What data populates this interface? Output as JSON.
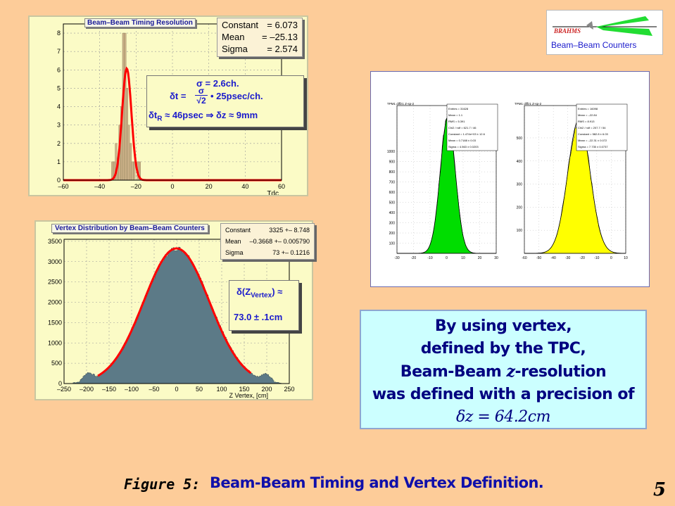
{
  "logo": {
    "brand": "BRAHMS",
    "label": "Beam–Beam Counters"
  },
  "timing_panel": {
    "title": "Beam–Beam Timing Resolution",
    "stats": [
      {
        "key": "Constant",
        "val": "= 6.073"
      },
      {
        "key": "Mean",
        "val": "= –25.13"
      },
      {
        "key": "Sigma",
        "val": "= 2.574"
      }
    ],
    "annotation": {
      "sigma_line": "σ = 2.6ch.",
      "dt_prefix": "δt =",
      "frac_num": "σ",
      "frac_den": "√2",
      "dt_suffix": "• 25psec/ch.",
      "dtr_line": "δt",
      "dtr_sub": "R",
      "dtr_rest": "≈ 46psec  ⇒ δz ≈ 9mm"
    },
    "xlabel": "Tdc",
    "xticks": [
      "–60",
      "–40",
      "–20",
      "0",
      "20",
      "40",
      "60"
    ],
    "yticks": [
      "0",
      "1",
      "2",
      "3",
      "4",
      "5",
      "6",
      "7",
      "8"
    ]
  },
  "vertex_panel": {
    "title": "Vertex Distribution by Beam–Beam Counters",
    "stats": [
      {
        "key": "Constant",
        "val": "3325 +– 8.748"
      },
      {
        "key": "Mean",
        "val": "–0.3668 +– 0.005790"
      },
      {
        "key": "Sigma",
        "val": "73 +– 0.1216"
      }
    ],
    "annotation": {
      "line1": "δ(Z",
      "sub": "Vertex",
      "line1_end": ") ≈",
      "line2": "73.0  ± .1cm"
    },
    "xlabel": "Z Vertex, [cm]",
    "xticks": [
      "–250",
      "–200",
      "–150",
      "–100",
      "–50",
      "0",
      "50",
      "100",
      "150",
      "200",
      "250"
    ],
    "yticks": [
      "0",
      "500",
      "1000",
      "1500",
      "2000",
      "2500",
      "3000",
      "3500"
    ]
  },
  "tpc_panel": {
    "left_title": "TPM1 diffz1 Z-sp-2",
    "right_title": "TPM1 diffz1 Z-sp-2",
    "left_stats": [
      "Entries  =  31628",
      "Mean  =  1.1",
      "RMS  =  5.391",
      "Chi2 / ndf  =  621.7 / 46",
      "Constant  =  1.474e+03 ± 12.6",
      "Mean  =  0.7188 ± 0.03",
      "Sigma  =  4.563 ± 0.0203"
    ],
    "right_stats": [
      "Entries  =  16098",
      "Mean  =  –22.84",
      "RMS  =  8.913",
      "Chi2 / ndf  =  207.7 / 54",
      "Constant  =  582.8 ± 6.03",
      "Mean  =  –22.31 ± 0.072",
      "Sigma  =  7.735 ± 0.0737"
    ],
    "left_yticks": [
      "1000",
      "900",
      "800",
      "700",
      "600",
      "500",
      "400",
      "300",
      "200",
      "100"
    ],
    "right_yticks": [
      "500",
      "400",
      "300",
      "200",
      "100"
    ],
    "left_xticks": [
      "-30",
      "-20",
      "-10",
      "0",
      "10",
      "20",
      "30"
    ],
    "right_xticks": [
      "-60",
      "-50",
      "-40",
      "-30",
      "-20",
      "-10",
      "0",
      "10"
    ]
  },
  "caption": {
    "lines": [
      "By using vertex,",
      "defined by the TPC,",
      "Beam-Beam",
      "-resolution",
      "was defined with a precision of"
    ],
    "z_italic": "z",
    "formula": "δz = 64.2cm"
  },
  "footer": {
    "label": "Figure 5:",
    "title": "Beam-Beam Timing and Vertex Definition."
  },
  "page_number": "5",
  "colors": {
    "background": "#fdcc99",
    "fit_red": "#ff0000",
    "timing_fill": "#cdb38a",
    "vertex_fill": "#5c7a87",
    "tpc_green": "#00dd00",
    "tpc_yellow": "#ffff00",
    "caption_bg": "#ccffff",
    "title_blue": "#1010aa"
  }
}
